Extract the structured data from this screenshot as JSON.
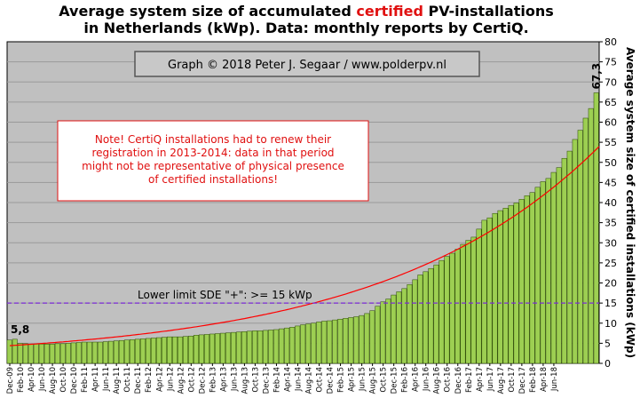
{
  "chart_data": {
    "type": "bar",
    "title_line1_before": "Average system size of accumulated ",
    "title_line1_highlight": "certified",
    "title_line1_after": " PV-installations",
    "title_line2": "in Netherlands (kWp). Data: monthly reports by CertiQ.",
    "ylabel": "Average system size of certified installations  (kWp)",
    "ylim": [
      0,
      80
    ],
    "yticks": [
      "0",
      "5",
      "10",
      "15",
      "20",
      "25",
      "30",
      "35",
      "40",
      "45",
      "50",
      "55",
      "60",
      "65",
      "70",
      "75",
      "80"
    ],
    "grid": "horizontal",
    "credit": "Graph © 2018 Peter J. Segaar / www.polderpv.nl",
    "note_lines": [
      "Note! CertiQ installations had to renew their",
      "registration in 2013-2014:  data in that period",
      "might not be representative of physical presence",
      "of certified installations!"
    ],
    "threshold": {
      "value": 15,
      "label": "Lower limit  SDE \"+\":    >= 15 kWp"
    },
    "first_label": "5,8",
    "last_label": "67,3",
    "x_tick_labels": [
      "Dec-09",
      "Feb-10",
      "Apr-10",
      "Jun-10",
      "Aug-10",
      "Oct-10",
      "Dec-10",
      "Feb-11",
      "Apr-11",
      "Jun-11",
      "Aug-11",
      "Oct-11",
      "Dec-11",
      "Feb-12",
      "Apr-12",
      "Jun-12",
      "Aug-12",
      "Oct-12",
      "Dec-12",
      "Feb-13",
      "Apr-13",
      "Jun-13",
      "Aug-13",
      "Oct-13",
      "Dec-13",
      "Feb-14",
      "Apr-14",
      "Jun-14",
      "Aug-14",
      "Oct-14",
      "Dec-14",
      "Feb-15",
      "Apr-15",
      "Jun-15",
      "Aug-15",
      "Oct-15",
      "Dec-15",
      "Feb-16",
      "Apr-16",
      "Jun-16",
      "Aug-16",
      "Oct-16",
      "Dec-16",
      "Feb-17",
      "Apr-17",
      "Jun-17",
      "Aug-17",
      "Oct-17",
      "Dec-17",
      "Feb-18",
      "Apr-18",
      "Jun-18"
    ],
    "values": [
      5.8,
      6.0,
      5.0,
      4.9,
      4.8,
      4.8,
      4.8,
      4.8,
      4.8,
      4.9,
      4.9,
      5.0,
      5.1,
      5.2,
      5.3,
      5.3,
      5.3,
      5.3,
      5.4,
      5.5,
      5.6,
      5.7,
      5.8,
      5.9,
      6.0,
      6.1,
      6.2,
      6.3,
      6.4,
      6.5,
      6.6,
      6.6,
      6.6,
      6.7,
      6.8,
      7.0,
      7.1,
      7.2,
      7.3,
      7.4,
      7.5,
      7.6,
      7.7,
      7.8,
      7.9,
      8.0,
      8.1,
      8.1,
      8.2,
      8.3,
      8.4,
      8.6,
      8.8,
      9.0,
      9.3,
      9.6,
      9.8,
      10.0,
      10.3,
      10.5,
      10.6,
      10.8,
      11.0,
      11.2,
      11.4,
      11.6,
      11.9,
      12.4,
      13.1,
      14.2,
      15.3,
      16.0,
      17.0,
      17.8,
      18.6,
      19.6,
      20.8,
      22.0,
      22.8,
      23.6,
      24.5,
      25.6,
      26.6,
      27.4,
      28.4,
      29.6,
      30.6,
      31.4,
      33.4,
      35.6,
      36.2,
      37.3,
      38.0,
      38.6,
      39.3,
      39.9,
      40.8,
      41.7,
      42.5,
      43.8,
      45.2,
      46.0,
      47.5,
      48.7,
      51.0,
      52.8,
      55.7,
      58.0,
      61.0,
      63.4,
      67.3
    ],
    "colors": {
      "bar": "#9dcf52",
      "bar_edge": "#2a4a00",
      "plot_bg": "#c0c0c0",
      "trend": "#ff0000",
      "threshold": "#7b2bd6",
      "note_text": "#e01010",
      "title_highlight": "#e01010"
    }
  }
}
